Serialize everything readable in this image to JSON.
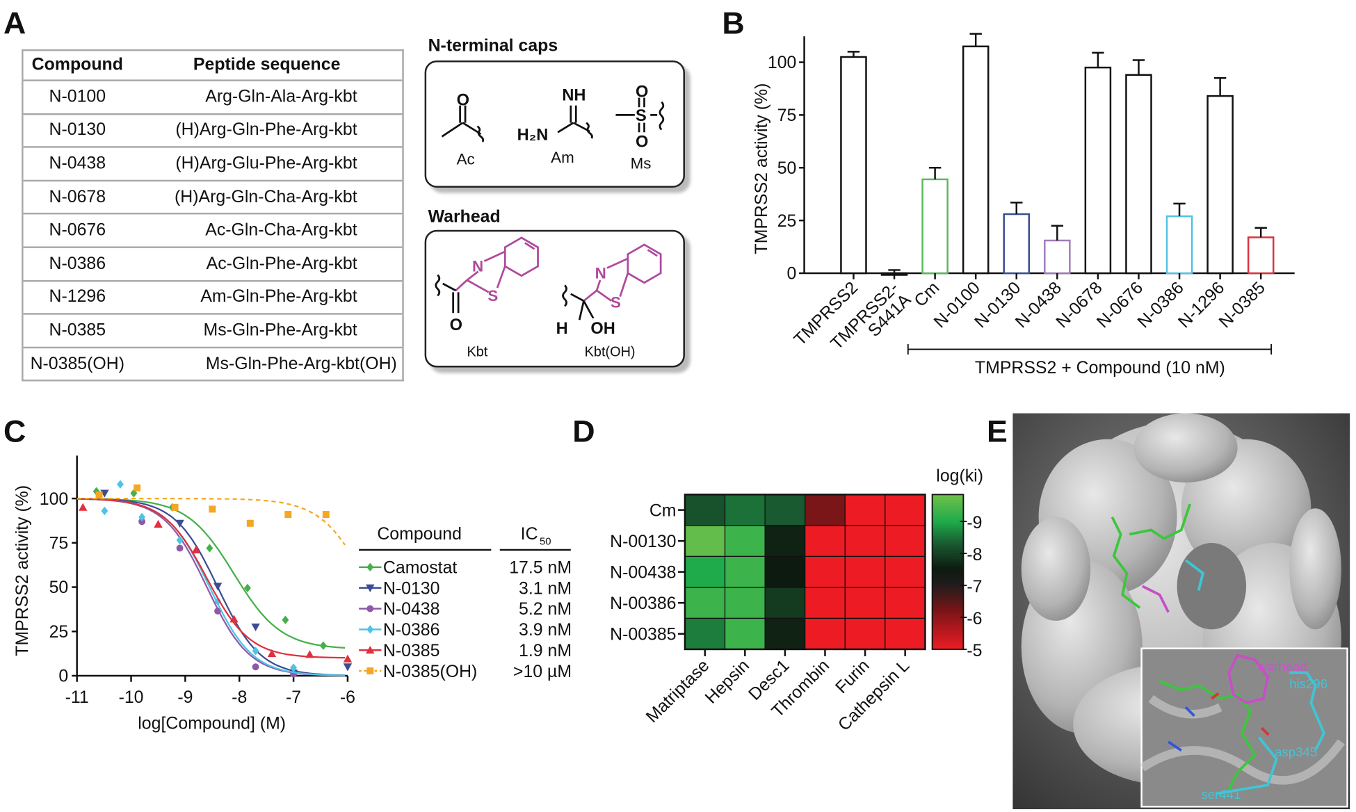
{
  "panel_labels": {
    "a": "A",
    "b": "B",
    "c": "C",
    "d": "D",
    "e": "E"
  },
  "panel_a": {
    "table": {
      "headers": [
        "Compound",
        "Peptide sequence"
      ],
      "rows": [
        [
          "N-0100",
          "Arg-Gln-Ala-Arg-kbt"
        ],
        [
          "N-0130",
          "(H)Arg-Gln-Phe-Arg-kbt"
        ],
        [
          "N-0438",
          "(H)Arg-Glu-Phe-Arg-kbt"
        ],
        [
          "N-0678",
          "(H)Arg-Gln-Cha-Arg-kbt"
        ],
        [
          "N-0676",
          "Ac-Gln-Cha-Arg-kbt"
        ],
        [
          "N-0386",
          "Ac-Gln-Phe-Arg-kbt"
        ],
        [
          "N-1296",
          "Am-Gln-Phe-Arg-kbt"
        ],
        [
          "N-0385",
          "Ms-Gln-Phe-Arg-kbt"
        ],
        [
          "N-0385(OH)",
          "Ms-Gln-Phe-Arg-kbt(OH)"
        ]
      ]
    },
    "caps": {
      "title": "N-terminal caps",
      "names": [
        "Ac",
        "Am",
        "Ms"
      ],
      "atoms": {
        "ac_o": "O",
        "am_nh": "NH",
        "am_h2n": "H₂N",
        "ms_s": "S",
        "ms_o1": "O",
        "ms_o2": "O"
      }
    },
    "warhead": {
      "title": "Warhead",
      "names": [
        "Kbt",
        "Kbt(OH)"
      ],
      "atoms": {
        "n": "N",
        "s": "S",
        "o": "O",
        "h": "H",
        "oh": "OH"
      },
      "highlight_color": "#b0499c"
    }
  },
  "chart_data": [
    {
      "panel": "B",
      "type": "bar",
      "categories": [
        "TMPRSS2",
        "TMPRSS2-S441A",
        "Cm",
        "N-0100",
        "N-0130",
        "N-0438",
        "N-0678",
        "N-0676",
        "N-0386",
        "N-1296",
        "N-0385"
      ],
      "values": [
        102.5,
        -0.5,
        44.5,
        107.5,
        28,
        15.5,
        97.5,
        94,
        27,
        84,
        17
      ],
      "errors": [
        2.5,
        2,
        5.5,
        6,
        5.5,
        7,
        7,
        7,
        6,
        8.5,
        4.5
      ],
      "colors": [
        "#111111",
        "#111111",
        "#5cb85c",
        "#111111",
        "#3b4d94",
        "#a07ab8",
        "#111111",
        "#111111",
        "#4fc3e6",
        "#111111",
        "#d9333f"
      ],
      "ylabel": "TMPRSS2 activity (%)",
      "yticks": [
        0,
        25,
        50,
        75,
        100
      ],
      "ylim": [
        0,
        110
      ],
      "bracket_label": "TMPRSS2 + Compound (10 nM)",
      "grid": false
    },
    {
      "panel": "C",
      "type": "scatter",
      "xlabel": "log[Compound] (M)",
      "ylabel": "TMPRSS2 activity (%)",
      "xlim": [
        -11,
        -6
      ],
      "ylim": [
        0,
        125
      ],
      "xticks": [
        -11,
        -10,
        -9,
        -8,
        -7,
        -6
      ],
      "yticks": [
        0,
        25,
        50,
        75,
        100
      ],
      "legend": {
        "header_compound": "Compound",
        "header_ic": "IC",
        "header_ic_sub": "50",
        "placement": "right"
      },
      "series": [
        {
          "name": "Camostat",
          "ic50": "17.5 nM",
          "color": "#45b04a",
          "marker": "diamond",
          "line": "solid",
          "points": [
            [
              -10.64,
              104
            ],
            [
              -9.95,
              103
            ],
            [
              -9.24,
              95
            ],
            [
              -8.55,
              72
            ],
            [
              -7.85,
              49.5
            ],
            [
              -7.15,
              31.5
            ],
            [
              -6.45,
              17
            ]
          ]
        },
        {
          "name": "N-0130",
          "ic50": "3.1 nM",
          "color": "#3b4d94",
          "marker": "triangle-down",
          "line": "solid",
          "points": [
            [
              -10.49,
              103
            ],
            [
              -9.1,
              86
            ],
            [
              -8.4,
              50.5
            ],
            [
              -7.7,
              27.5
            ],
            [
              -7.0,
              1.5
            ],
            [
              -6.0,
              5
            ]
          ]
        },
        {
          "name": "N-0438",
          "ic50": "5.2 nM",
          "color": "#8e5aa8",
          "marker": "circle",
          "line": "solid",
          "points": [
            [
              -10.59,
              101
            ],
            [
              -9.8,
              87
            ],
            [
              -9.1,
              72
            ],
            [
              -8.4,
              36.5
            ],
            [
              -7.7,
              5
            ],
            [
              -7.0,
              1
            ]
          ]
        },
        {
          "name": "N-0386",
          "ic50": "3.9 nM",
          "color": "#4fc3e6",
          "marker": "diamond",
          "line": "solid",
          "points": [
            [
              -10.49,
              93
            ],
            [
              -10.2,
              108
            ],
            [
              -9.8,
              89.5
            ],
            [
              -9.1,
              76.5
            ],
            [
              -8.4,
              42
            ],
            [
              -7.7,
              14
            ],
            [
              -7.0,
              4.5
            ]
          ]
        },
        {
          "name": "N-0385",
          "ic50": "1.9 nM",
          "color": "#e0303e",
          "marker": "triangle-up",
          "line": "solid",
          "points": [
            [
              -10.89,
              95
            ],
            [
              -9.5,
              85.5
            ],
            [
              -8.8,
              71
            ],
            [
              -8.1,
              32
            ],
            [
              -7.4,
              12.5
            ],
            [
              -6.7,
              12
            ],
            [
              -6.0,
              9.5
            ]
          ]
        },
        {
          "name": "N-0385(OH)",
          "ic50": ">10 µM",
          "color": "#f5a623",
          "marker": "square",
          "line": "dashed",
          "points": [
            [
              -10.59,
              102
            ],
            [
              -9.89,
              106
            ],
            [
              -9.19,
              95
            ],
            [
              -8.5,
              94
            ],
            [
              -7.8,
              86
            ],
            [
              -7.1,
              91
            ],
            [
              -6.4,
              91
            ]
          ]
        }
      ]
    },
    {
      "panel": "D",
      "type": "heatmap",
      "rows": [
        "Cm",
        "N-00130",
        "N-00438",
        "N-00386",
        "N-00385"
      ],
      "columns": [
        "Matriptase",
        "Hepsin",
        "Desc1",
        "Thrombin",
        "Furin",
        "Cathepsin L"
      ],
      "values": [
        [
          -8.2,
          -8.5,
          -8.3,
          -6.2,
          -5.0,
          -5.0
        ],
        [
          -9.7,
          -9.3,
          -7.6,
          -5.0,
          -5.0,
          -5.0
        ],
        [
          -9.0,
          -9.3,
          -7.5,
          -5.0,
          -5.0,
          -5.0
        ],
        [
          -9.3,
          -9.3,
          -7.9,
          -5.0,
          -5.0,
          -5.0
        ],
        [
          -8.6,
          -9.3,
          -7.6,
          -5.0,
          -5.0,
          -5.0
        ]
      ],
      "colorbar": {
        "label": "log(ki)",
        "ticks": [
          -9,
          -8,
          -7,
          -6,
          -5
        ],
        "range": [
          -9.8,
          -5
        ],
        "low_color": "#6cc04a",
        "mid_color": "#111111",
        "high_color": "#ed1c24"
      }
    }
  ],
  "panel_e": {
    "labels": {
      "warhead": "warhead",
      "his": "his296",
      "asp": "asp345",
      "ser": "ser441"
    },
    "colors": {
      "warhead": "#d14fd1",
      "residue": "#3fc6d6"
    }
  }
}
